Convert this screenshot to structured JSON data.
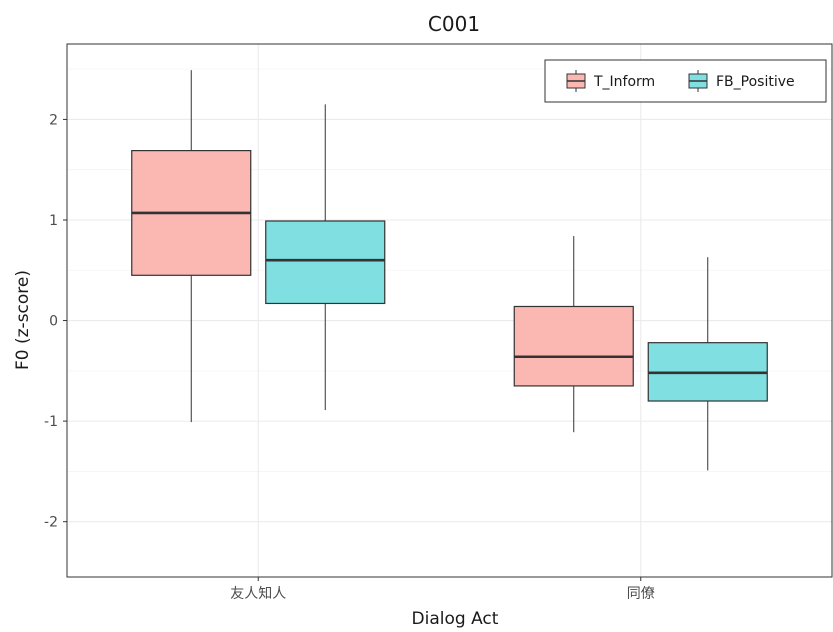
{
  "chart_data": {
    "type": "box",
    "title": "C001",
    "xlabel": "Dialog Act",
    "ylabel": "F0 (z-score)",
    "ylim": [
      -2.55,
      2.75
    ],
    "yticks": [
      -2,
      -1,
      0,
      1,
      2
    ],
    "ytick_labels": [
      "-2",
      "-1",
      "0",
      "1",
      "2"
    ],
    "categories": [
      "友人知人",
      "同僚"
    ],
    "legend_position": "top-right",
    "grid": true,
    "series": [
      {
        "name": "T_Inform",
        "color": "#F8766D",
        "fill": "#FBB7B2",
        "boxes": [
          {
            "min": -1.01,
            "q1": 0.45,
            "median": 1.07,
            "q3": 1.69,
            "max": 2.49
          },
          {
            "min": -1.11,
            "q1": -0.65,
            "median": -0.36,
            "q3": 0.14,
            "max": 0.84
          }
        ]
      },
      {
        "name": "FB_Positive",
        "color": "#00BFC4",
        "fill": "#7FDFE1",
        "boxes": [
          {
            "min": -0.89,
            "q1": 0.17,
            "median": 0.6,
            "q3": 0.99,
            "max": 2.15
          },
          {
            "min": -1.49,
            "q1": -0.8,
            "median": -0.52,
            "q3": -0.22,
            "max": 0.63
          }
        ]
      }
    ]
  }
}
